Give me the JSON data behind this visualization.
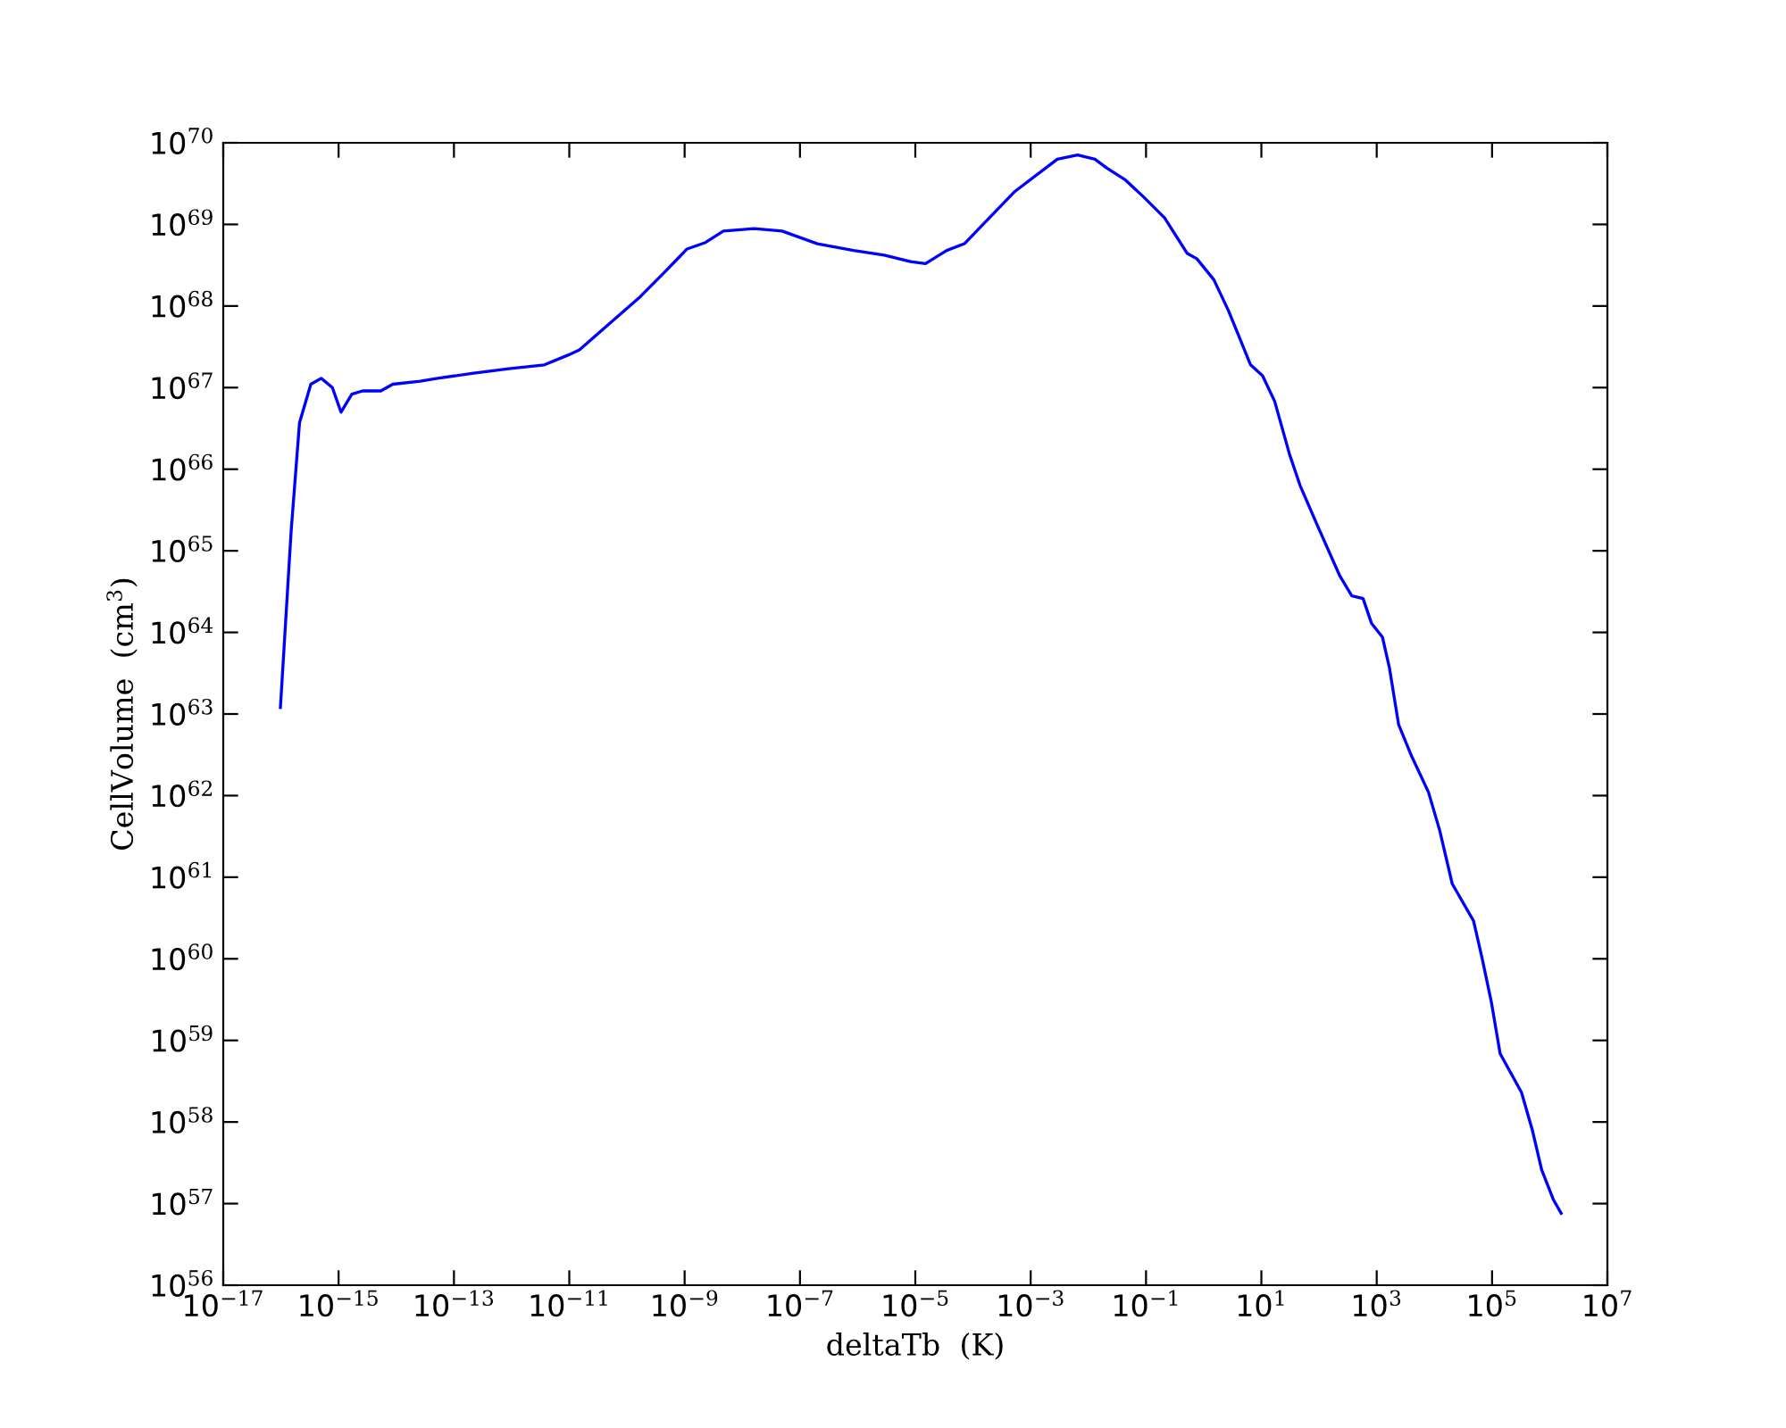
{
  "chart_data": {
    "type": "line",
    "xlabel": "deltaTb  (K)",
    "ylabel": "CellVolume  (cm$^{3}$)",
    "log": "xy",
    "grid": false,
    "marker": "none",
    "line_style": "solid",
    "xlim": [
      1e-17,
      10000000.0
    ],
    "ylim": [
      1e+56,
      1e+70
    ],
    "xticks": [
      {
        "value": 1e-17,
        "label": "10$^{−17}$"
      },
      {
        "value": 1e-15,
        "label": "10$^{−15}$"
      },
      {
        "value": 1e-13,
        "label": "10$^{−13}$"
      },
      {
        "value": 1e-11,
        "label": "10$^{−11}$"
      },
      {
        "value": 1e-09,
        "label": "10$^{−9}$"
      },
      {
        "value": 1e-07,
        "label": "10$^{−7}$"
      },
      {
        "value": 1e-05,
        "label": "10$^{−5}$"
      },
      {
        "value": 0.001,
        "label": "10$^{−3}$"
      },
      {
        "value": 0.1,
        "label": "10$^{−1}$"
      },
      {
        "value": 10,
        "label": "10$^{1}$"
      },
      {
        "value": 1000.0,
        "label": "10$^{3}$"
      },
      {
        "value": 100000.0,
        "label": "10$^{5}$"
      },
      {
        "value": 10000000.0,
        "label": "10$^{7}$"
      }
    ],
    "yticks": [
      {
        "value": 1e+56,
        "label": "10$^{56}$"
      },
      {
        "value": 1e+57,
        "label": "10$^{57}$"
      },
      {
        "value": 1e+58,
        "label": "10$^{58}$"
      },
      {
        "value": 1e+59,
        "label": "10$^{59}$"
      },
      {
        "value": 1e+60,
        "label": "10$^{60}$"
      },
      {
        "value": 1e+61,
        "label": "10$^{61}$"
      },
      {
        "value": 1e+62,
        "label": "10$^{62}$"
      },
      {
        "value": 1e+63,
        "label": "10$^{63}$"
      },
      {
        "value": 1e+64,
        "label": "10$^{64}$"
      },
      {
        "value": 1e+65,
        "label": "10$^{65}$"
      },
      {
        "value": 1e+66,
        "label": "10$^{66}$"
      },
      {
        "value": 1e+67,
        "label": "10$^{67}$"
      },
      {
        "value": 1e+68,
        "label": "10$^{68}$"
      },
      {
        "value": 1e+69,
        "label": "10$^{69}$"
      },
      {
        "value": 1e+70,
        "label": "10$^{70}$"
      }
    ],
    "x": [
      9.8e-17,
      1.5e-16,
      2.1e-16,
      3.3e-16,
      5e-16,
      7.8e-16,
      1.1e-15,
      1.7e-15,
      2.6e-15,
      5.4e-15,
      8.7e-15,
      2.6e-14,
      5.2e-14,
      2.2e-13,
      8.9e-13,
      3.7e-12,
      9.5e-12,
      1.5e-11,
      4.6e-11,
      1.7e-10,
      4.5e-10,
      1.1e-09,
      2.3e-09,
      4.7e-09,
      1.6e-08,
      4.9e-08,
      2e-07,
      8.5e-07,
      2.9e-06,
      8.3e-06,
      1.5e-05,
      3.5e-05,
      7.1e-05,
      0.00017,
      0.00052,
      0.0029,
      0.0065,
      0.013,
      0.021,
      0.044,
      0.089,
      0.21,
      0.52,
      0.76,
      1.5,
      2.7,
      3.9,
      6.5,
      10.5,
      17,
      31,
      47,
      95,
      230,
      370,
      580,
      810,
      1260,
      1660,
      2400,
      3900,
      7900,
      12300,
      20400,
      47900,
      67600,
      97700,
      138000,
      324000,
      501000,
      724000,
      1170000.0,
      1580000.0
    ],
    "series": [
      {
        "color": "#0000ff",
        "values": [
          1.2e+63,
          1.7e+65,
          3.7e+66,
          1.1e+67,
          1.3e+67,
          1e+67,
          5e+66,
          8.3e+66,
          9.1e+66,
          9.1e+66,
          1.1e+67,
          1.2e+67,
          1.3e+67,
          1.5e+67,
          1.7e+67,
          1.9e+67,
          2.5e+67,
          2.9e+67,
          5.8e+67,
          1.3e+68,
          2.6e+68,
          5e+68,
          6e+68,
          8.3e+68,
          8.9e+68,
          8.3e+68,
          5.8e+68,
          4.8e+68,
          4.2e+68,
          3.5e+68,
          3.3e+68,
          4.8e+68,
          5.8e+68,
          1.1e+69,
          2.5e+69,
          6.3e+69,
          7.1e+69,
          6.3e+69,
          4.9e+69,
          3.5e+69,
          2.2e+69,
          1.2e+69,
          4.4e+68,
          3.8e+68,
          2.1e+68,
          8.7e+67,
          4.6e+67,
          1.9e+67,
          1.4e+67,
          6.8e+66,
          1.5e+66,
          6.3e+65,
          2e+65,
          4.9e+64,
          2.8e+64,
          2.6e+64,
          1.3e+64,
          8.7e+63,
          3.7e+63,
          7.4e+62,
          3.2e+62,
          1.1e+62,
          3.8e+61,
          8.3e+60,
          2.9e+60,
          1e+60,
          2.9e+59,
          6.9e+58,
          2.3e+58,
          7.9e+57,
          2.6e+57,
          1.1e+57,
          7.6e+56
        ]
      }
    ]
  }
}
